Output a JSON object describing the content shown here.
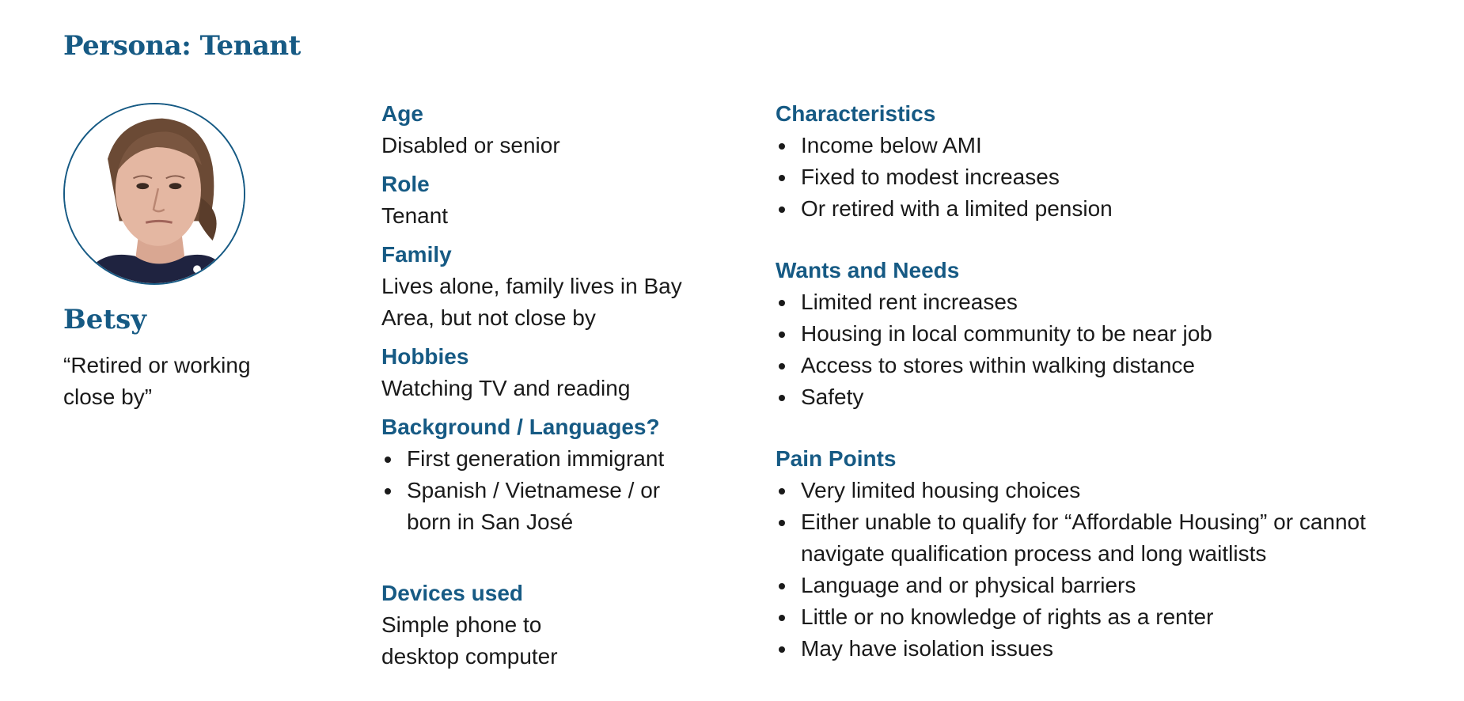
{
  "title": "Persona: Tenant",
  "persona": {
    "name": "Betsy",
    "quote_line1": "“Retired or working",
    "quote_line2": "close by”"
  },
  "profile": {
    "age_label": "Age",
    "age_value": "Disabled or senior",
    "role_label": "Role",
    "role_value": "Tenant",
    "family_label": "Family",
    "family_line1": "Lives alone, family lives in Bay",
    "family_line2": "Area, but not close by",
    "hobbies_label": "Hobbies",
    "hobbies_value": "Watching TV and reading",
    "background_label": "Background / Languages?",
    "background_items": [
      "First generation immigrant",
      "Spanish / Vietnamese / or born in San José"
    ],
    "devices_label": "Devices used",
    "devices_line1": "Simple phone to",
    "devices_line2": "desktop computer"
  },
  "characteristics": {
    "label": "Characteristics",
    "items": [
      "Income below AMI",
      "Fixed to modest increases",
      "Or retired with a limited pension"
    ]
  },
  "wants": {
    "label": "Wants and Needs",
    "items": [
      "Limited rent increases",
      "Housing in local community to be near job",
      "Access to stores within walking distance",
      "Safety"
    ]
  },
  "pain": {
    "label": "Pain Points",
    "items": [
      "Very limited housing choices",
      "Either unable to qualify for “Affordable Housing” or cannot navigate qualification process and long waitlists",
      "Language and or physical barriers",
      "Little or no knowledge of rights as a renter",
      "May have isolation issues"
    ]
  }
}
